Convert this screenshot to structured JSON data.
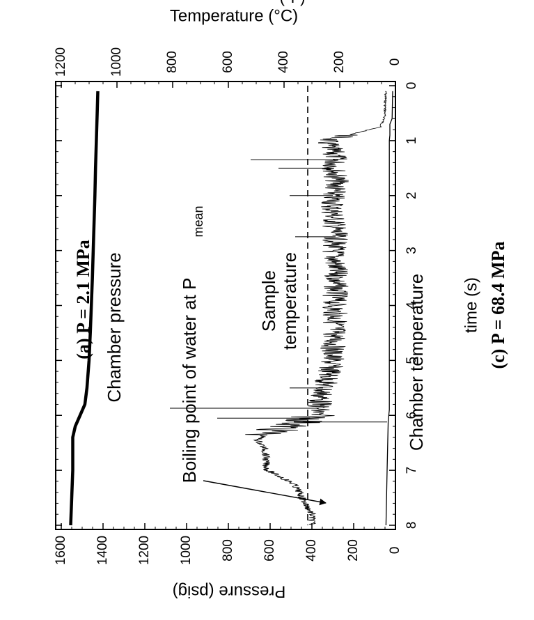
{
  "chart_data": {
    "type": "line",
    "orientation": "rotated 90 degrees clockwise (time axis runs top to bottom, values increase to the left)",
    "captions": {
      "top": "(a) P = 2.1 MPa",
      "bottom": "(c) P = 68.4 MPa"
    },
    "cut_label_fragment": "(°F)",
    "x_axis": {
      "label": "time (s)",
      "range": [
        0,
        8
      ],
      "ticks": [
        "0",
        "1",
        "2",
        "3",
        "4",
        "5",
        "6",
        "7",
        "8"
      ]
    },
    "left_axis": {
      "label": "Pressure (psig)",
      "range": [
        0,
        1600
      ],
      "ticks": [
        "0",
        "200",
        "400",
        "600",
        "800",
        "1000",
        "1200",
        "1400",
        "1600"
      ]
    },
    "right_axis": {
      "label": "Temperature (°C)",
      "range": [
        0,
        1200
      ],
      "ticks": [
        "0",
        "200",
        "400",
        "600",
        "800",
        "1000",
        "1200"
      ]
    },
    "annotations": {
      "chamber_pressure": "Chamber pressure",
      "sample_temperature_line1": "Sample",
      "sample_temperature_line2": "temperature",
      "chamber_temperature": "Chamber temperature",
      "boiling_point": "Boiling point of water at P",
      "boiling_point_subscript": "mean"
    },
    "series": [
      {
        "name": "Chamber pressure",
        "axis": "Pressure (psig)",
        "x": [
          0.1,
          0.5,
          1.0,
          1.5,
          2.0,
          2.5,
          3.0,
          3.5,
          4.0,
          4.5,
          5.0,
          5.5,
          5.8,
          6.0,
          6.2,
          6.4,
          6.6,
          7.0,
          7.5,
          8.0
        ],
        "y": [
          1425,
          1428,
          1432,
          1436,
          1439,
          1443,
          1447,
          1451,
          1456,
          1461,
          1467,
          1477,
          1487,
          1510,
          1533,
          1545,
          1545,
          1545,
          1550,
          1555
        ]
      },
      {
        "name": "Sample temperature",
        "axis": "Temperature (°C)",
        "x": [
          0.1,
          0.5,
          0.6,
          0.75,
          0.9,
          1.0,
          1.1,
          1.3,
          1.5,
          1.75,
          2.0,
          2.25,
          2.5,
          2.75,
          3.0,
          3.25,
          3.5,
          3.75,
          4.0,
          4.25,
          4.5,
          4.75,
          5.0,
          5.25,
          5.5,
          5.75,
          5.95,
          6.1,
          6.25,
          6.35,
          6.45,
          6.6,
          6.75,
          6.9,
          7.0,
          7.1,
          7.25,
          7.4,
          7.6,
          7.8,
          8.0
        ],
        "y": [
          35,
          38,
          40,
          55,
          170,
          250,
          240,
          215,
          220,
          210,
          225,
          225,
          220,
          215,
          222,
          218,
          212,
          215,
          220,
          215,
          218,
          224,
          230,
          236,
          260,
          270,
          280,
          320,
          420,
          470,
          495,
          470,
          465,
          465,
          460,
          420,
          365,
          345,
          325,
          300,
          300
        ]
      },
      {
        "name": "Chamber temperature",
        "axis": "Temperature (°C)",
        "x": [
          0.1,
          0.6,
          0.7,
          0.9,
          1.0,
          2.0,
          3.0,
          4.0,
          5.0,
          5.9,
          6.0,
          6.1,
          7.0,
          8.0
        ],
        "y": [
          10,
          12,
          20,
          20,
          22,
          22,
          22,
          22,
          22,
          22,
          24,
          26,
          30,
          34
        ]
      },
      {
        "name": "Boiling point of water at P mean",
        "axis": "Pressure (psig)",
        "x": [
          0.0,
          8.0
        ],
        "y": [
          420,
          420
        ]
      }
    ]
  }
}
